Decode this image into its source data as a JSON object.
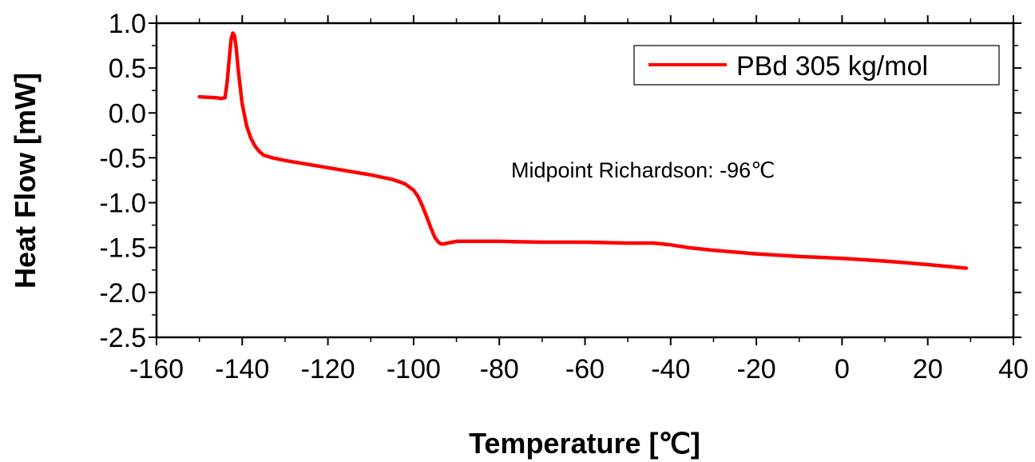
{
  "chart_data": {
    "type": "line",
    "xlabel": "Temperature [℃]",
    "ylabel": "Heat Flow [mW]",
    "xlim": [
      -160,
      40
    ],
    "ylim": [
      -2.5,
      1.0
    ],
    "xticks": [
      -160,
      -140,
      -120,
      -100,
      -80,
      -60,
      -40,
      -20,
      0,
      20,
      40
    ],
    "yticks": [
      1.0,
      0.5,
      0.0,
      -0.5,
      -1.0,
      -1.5,
      -2.0,
      -2.5
    ],
    "xtick_labels": [
      "-160",
      "-140",
      "-120",
      "-100",
      "-80",
      "-60",
      "-40",
      "-20",
      "0",
      "20",
      "40"
    ],
    "ytick_labels": [
      "1.0",
      "0.5",
      "0.0",
      "-0.5",
      "-1.0",
      "-1.5",
      "-2.0",
      "-2.5"
    ],
    "grid": false,
    "legend_position": "top-right",
    "annotation": "Midpoint Richardson: -96℃",
    "series": [
      {
        "name": "PBd 305 kg/mol",
        "color": "#ff0000",
        "x": [
          -150,
          -146,
          -145,
          -144,
          -143.5,
          -143,
          -142.6,
          -142.2,
          -141.8,
          -141.4,
          -141,
          -140.5,
          -140,
          -139,
          -138,
          -137,
          -136,
          -135,
          -133,
          -130,
          -125,
          -120,
          -115,
          -110,
          -105,
          -102,
          -100,
          -99,
          -98,
          -97,
          -96,
          -95,
          -94,
          -93.5,
          -93,
          -92,
          -91,
          -90,
          -88,
          -85,
          -80,
          -70,
          -60,
          -50,
          -44,
          -40,
          -36,
          -30,
          -20,
          -10,
          0,
          10,
          20,
          29
        ],
        "y": [
          0.18,
          0.17,
          0.16,
          0.17,
          0.35,
          0.62,
          0.82,
          0.89,
          0.86,
          0.72,
          0.52,
          0.3,
          0.1,
          -0.14,
          -0.28,
          -0.37,
          -0.43,
          -0.47,
          -0.5,
          -0.53,
          -0.57,
          -0.61,
          -0.65,
          -0.69,
          -0.74,
          -0.79,
          -0.86,
          -0.93,
          -1.03,
          -1.15,
          -1.28,
          -1.39,
          -1.45,
          -1.46,
          -1.46,
          -1.45,
          -1.44,
          -1.43,
          -1.43,
          -1.43,
          -1.43,
          -1.44,
          -1.44,
          -1.45,
          -1.45,
          -1.47,
          -1.5,
          -1.53,
          -1.57,
          -1.6,
          -1.62,
          -1.65,
          -1.69,
          -1.73
        ]
      }
    ]
  }
}
